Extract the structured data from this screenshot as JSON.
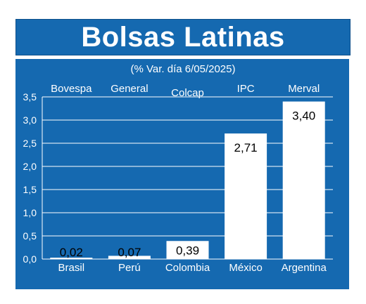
{
  "header": {
    "title": "Bolsas Latinas"
  },
  "chart_data": {
    "type": "bar",
    "subtitle": "(% Var. día 6/05/2025)",
    "categories": [
      "Brasil",
      "Perú",
      "Colombia",
      "México",
      "Argentina"
    ],
    "indices": [
      "Bovespa",
      "General",
      "Colcap",
      "IPC",
      "Merval"
    ],
    "values": [
      0.02,
      0.07,
      0.39,
      2.71,
      3.4
    ],
    "value_labels": [
      "0,02",
      "0,07",
      "0,39",
      "2,71",
      "3,40"
    ],
    "yticks": [
      "0,0",
      "0,5",
      "1,0",
      "1,5",
      "2,0",
      "2,5",
      "3,0",
      "3,5"
    ],
    "ylim": [
      0,
      3.5
    ],
    "grid": true,
    "colors": {
      "background": "#1569b0",
      "bar": "#ffffff",
      "grid": "#ffffff",
      "text": "#ffffff",
      "label_inside": "#000000"
    }
  }
}
